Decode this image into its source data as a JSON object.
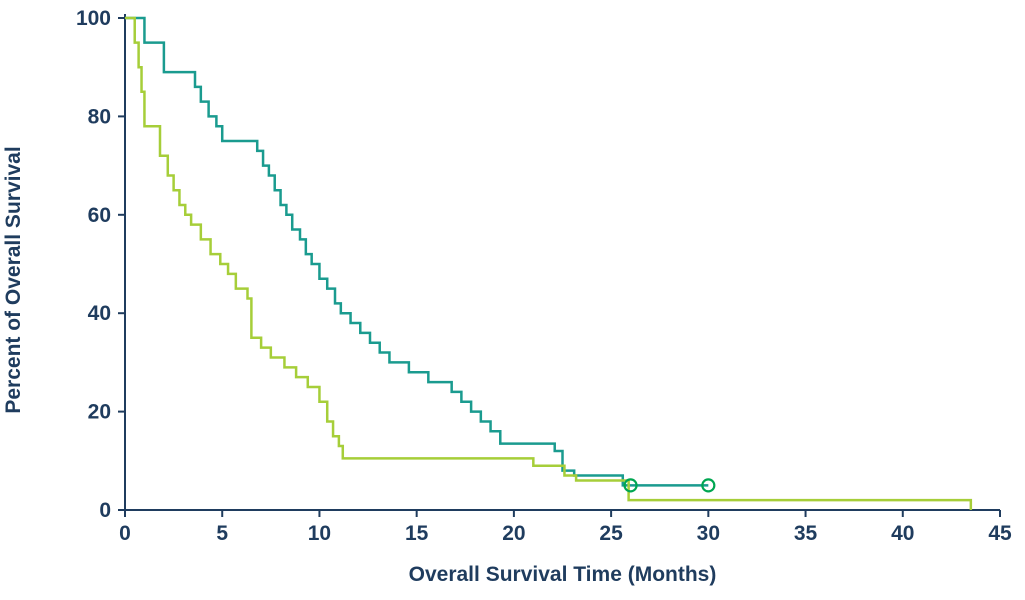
{
  "chart_data": {
    "type": "line",
    "subtype": "kaplan-meier-step-survival",
    "title": "",
    "xlabel": "Overall Survival Time (Months)",
    "ylabel": "Percent of Overall Survival",
    "xlim": [
      0,
      45
    ],
    "ylim": [
      0,
      100
    ],
    "xticks": [
      0,
      5,
      10,
      15,
      20,
      25,
      30,
      35,
      40,
      45
    ],
    "yticks": [
      0,
      20,
      40,
      60,
      80,
      100
    ],
    "grid": false,
    "legend": "none",
    "axis_color": "#1f3c5e",
    "tick_label_color": "#1f3c5e",
    "series": [
      {
        "name": "teal-survival-curve",
        "color": "#1a9b8f",
        "points": [
          [
            0,
            100
          ],
          [
            1,
            95
          ],
          [
            2,
            89
          ],
          [
            3.6,
            86
          ],
          [
            3.9,
            83
          ],
          [
            4.3,
            80
          ],
          [
            4.7,
            78
          ],
          [
            5,
            75
          ],
          [
            6.8,
            73
          ],
          [
            7.1,
            70
          ],
          [
            7.4,
            68
          ],
          [
            7.7,
            65
          ],
          [
            8,
            62
          ],
          [
            8.3,
            60
          ],
          [
            8.6,
            57
          ],
          [
            9,
            55
          ],
          [
            9.3,
            52
          ],
          [
            9.6,
            50
          ],
          [
            10,
            47
          ],
          [
            10.4,
            45
          ],
          [
            10.8,
            42
          ],
          [
            11.1,
            40
          ],
          [
            11.6,
            38
          ],
          [
            12.1,
            36
          ],
          [
            12.6,
            34
          ],
          [
            13.1,
            32
          ],
          [
            13.6,
            30
          ],
          [
            14.6,
            28
          ],
          [
            15.6,
            26
          ],
          [
            16.8,
            24
          ],
          [
            17.3,
            22
          ],
          [
            17.8,
            20
          ],
          [
            18.3,
            18
          ],
          [
            18.8,
            16
          ],
          [
            19.3,
            13.5
          ],
          [
            22.1,
            12
          ],
          [
            22.5,
            8
          ],
          [
            23.1,
            7
          ],
          [
            25.6,
            5
          ],
          [
            30,
            5
          ]
        ]
      },
      {
        "name": "green-survival-curve",
        "color": "#a6ce39",
        "points": [
          [
            0,
            100
          ],
          [
            0.5,
            95
          ],
          [
            0.7,
            90
          ],
          [
            0.85,
            85
          ],
          [
            1,
            78
          ],
          [
            1.8,
            72
          ],
          [
            2.2,
            68
          ],
          [
            2.5,
            65
          ],
          [
            2.8,
            62
          ],
          [
            3.1,
            60
          ],
          [
            3.4,
            58
          ],
          [
            3.9,
            55
          ],
          [
            4.4,
            52
          ],
          [
            4.9,
            50
          ],
          [
            5.3,
            48
          ],
          [
            5.7,
            45
          ],
          [
            6.3,
            43
          ],
          [
            6.5,
            35
          ],
          [
            7,
            33
          ],
          [
            7.5,
            31
          ],
          [
            8.2,
            29
          ],
          [
            8.8,
            27
          ],
          [
            9.4,
            25
          ],
          [
            10,
            22
          ],
          [
            10.4,
            18
          ],
          [
            10.7,
            15
          ],
          [
            11,
            13
          ],
          [
            11.2,
            10.5
          ],
          [
            21,
            9
          ],
          [
            22.6,
            7
          ],
          [
            23.2,
            6
          ],
          [
            25.9,
            2
          ],
          [
            43.5,
            0
          ]
        ]
      }
    ],
    "censor_marks": {
      "name": "censored-observation-circles",
      "color": "#00a651",
      "points": [
        [
          26,
          5
        ],
        [
          30,
          5
        ]
      ]
    }
  }
}
